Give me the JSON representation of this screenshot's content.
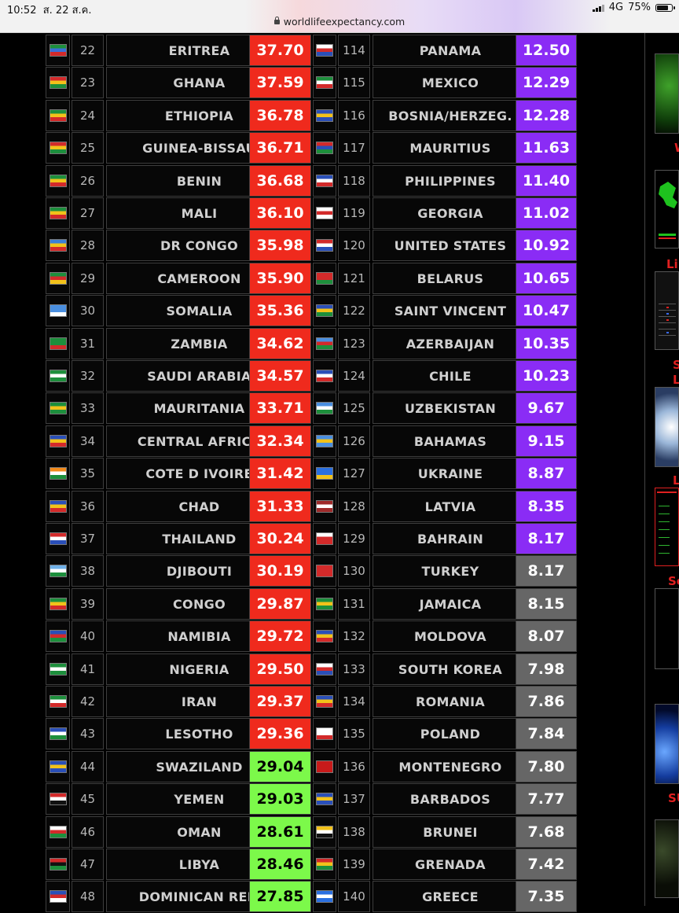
{
  "status_bar": {
    "time": "10:52",
    "date": "ส. 22 ส.ค.",
    "network": "4G",
    "battery": "75%",
    "url": "worldlifeexpectancy.com"
  },
  "colors": {
    "red": "#ef2a1d",
    "purple": "#8a2cf5",
    "gray": "#666666",
    "green": "#7cf94a"
  },
  "rows": [
    {
      "l": {
        "rank": "22",
        "name": "ERITREA",
        "value": "37.70",
        "color": "red"
      },
      "r": {
        "rank": "114",
        "name": "PANAMA",
        "value": "12.50",
        "color": "purple"
      }
    },
    {
      "l": {
        "rank": "23",
        "name": "GHANA",
        "value": "37.59",
        "color": "red"
      },
      "r": {
        "rank": "115",
        "name": "MEXICO",
        "value": "12.29",
        "color": "purple"
      }
    },
    {
      "l": {
        "rank": "24",
        "name": "ETHIOPIA",
        "value": "36.78",
        "color": "red"
      },
      "r": {
        "rank": "116",
        "name": "BOSNIA/HERZEG.",
        "value": "12.28",
        "color": "purple"
      }
    },
    {
      "l": {
        "rank": "25",
        "name": "GUINEA-BISSAU",
        "value": "36.71",
        "color": "red"
      },
      "r": {
        "rank": "117",
        "name": "MAURITIUS",
        "value": "11.63",
        "color": "purple"
      }
    },
    {
      "l": {
        "rank": "26",
        "name": "BENIN",
        "value": "36.68",
        "color": "red"
      },
      "r": {
        "rank": "118",
        "name": "PHILIPPINES",
        "value": "11.40",
        "color": "purple"
      }
    },
    {
      "l": {
        "rank": "27",
        "name": "MALI",
        "value": "36.10",
        "color": "red"
      },
      "r": {
        "rank": "119",
        "name": "GEORGIA",
        "value": "11.02",
        "color": "purple"
      }
    },
    {
      "l": {
        "rank": "28",
        "name": "DR CONGO",
        "value": "35.98",
        "color": "red"
      },
      "r": {
        "rank": "120",
        "name": "UNITED STATES",
        "value": "10.92",
        "color": "purple"
      }
    },
    {
      "l": {
        "rank": "29",
        "name": "CAMEROON",
        "value": "35.90",
        "color": "red"
      },
      "r": {
        "rank": "121",
        "name": "BELARUS",
        "value": "10.65",
        "color": "purple"
      }
    },
    {
      "l": {
        "rank": "30",
        "name": "SOMALIA",
        "value": "35.36",
        "color": "red"
      },
      "r": {
        "rank": "122",
        "name": "SAINT VINCENT",
        "value": "10.47",
        "color": "purple"
      }
    },
    {
      "l": {
        "rank": "31",
        "name": "ZAMBIA",
        "value": "34.62",
        "color": "red"
      },
      "r": {
        "rank": "123",
        "name": "AZERBAIJAN",
        "value": "10.35",
        "color": "purple"
      }
    },
    {
      "l": {
        "rank": "32",
        "name": "SAUDI ARABIA",
        "value": "34.57",
        "color": "red"
      },
      "r": {
        "rank": "124",
        "name": "CHILE",
        "value": "10.23",
        "color": "purple"
      }
    },
    {
      "l": {
        "rank": "33",
        "name": "MAURITANIA",
        "value": "33.71",
        "color": "red"
      },
      "r": {
        "rank": "125",
        "name": "UZBEKISTAN",
        "value": "9.67",
        "color": "purple"
      }
    },
    {
      "l": {
        "rank": "34",
        "name": "CENTRAL AFRICA",
        "value": "32.34",
        "color": "red"
      },
      "r": {
        "rank": "126",
        "name": "BAHAMAS",
        "value": "9.15",
        "color": "purple"
      }
    },
    {
      "l": {
        "rank": "35",
        "name": "COTE D IVOIRE",
        "value": "31.42",
        "color": "red"
      },
      "r": {
        "rank": "127",
        "name": "UKRAINE",
        "value": "8.87",
        "color": "purple"
      }
    },
    {
      "l": {
        "rank": "36",
        "name": "CHAD",
        "value": "31.33",
        "color": "red"
      },
      "r": {
        "rank": "128",
        "name": "LATVIA",
        "value": "8.35",
        "color": "purple"
      }
    },
    {
      "l": {
        "rank": "37",
        "name": "THAILAND",
        "value": "30.24",
        "color": "red"
      },
      "r": {
        "rank": "129",
        "name": "BAHRAIN",
        "value": "8.17",
        "color": "purple"
      }
    },
    {
      "l": {
        "rank": "38",
        "name": "DJIBOUTI",
        "value": "30.19",
        "color": "red"
      },
      "r": {
        "rank": "130",
        "name": "TURKEY",
        "value": "8.17",
        "color": "gray"
      }
    },
    {
      "l": {
        "rank": "39",
        "name": "CONGO",
        "value": "29.87",
        "color": "red"
      },
      "r": {
        "rank": "131",
        "name": "JAMAICA",
        "value": "8.15",
        "color": "gray"
      }
    },
    {
      "l": {
        "rank": "40",
        "name": "NAMIBIA",
        "value": "29.72",
        "color": "red"
      },
      "r": {
        "rank": "132",
        "name": "MOLDOVA",
        "value": "8.07",
        "color": "gray"
      }
    },
    {
      "l": {
        "rank": "41",
        "name": "NIGERIA",
        "value": "29.50",
        "color": "red"
      },
      "r": {
        "rank": "133",
        "name": "SOUTH KOREA",
        "value": "7.98",
        "color": "gray"
      }
    },
    {
      "l": {
        "rank": "42",
        "name": "IRAN",
        "value": "29.37",
        "color": "red"
      },
      "r": {
        "rank": "134",
        "name": "ROMANIA",
        "value": "7.86",
        "color": "gray"
      }
    },
    {
      "l": {
        "rank": "43",
        "name": "LESOTHO",
        "value": "29.36",
        "color": "red"
      },
      "r": {
        "rank": "135",
        "name": "POLAND",
        "value": "7.84",
        "color": "gray"
      }
    },
    {
      "l": {
        "rank": "44",
        "name": "SWAZILAND",
        "value": "29.04",
        "color": "green"
      },
      "r": {
        "rank": "136",
        "name": "MONTENEGRO",
        "value": "7.80",
        "color": "gray"
      }
    },
    {
      "l": {
        "rank": "45",
        "name": "YEMEN",
        "value": "29.03",
        "color": "green"
      },
      "r": {
        "rank": "137",
        "name": "BARBADOS",
        "value": "7.77",
        "color": "gray"
      }
    },
    {
      "l": {
        "rank": "46",
        "name": "OMAN",
        "value": "28.61",
        "color": "green"
      },
      "r": {
        "rank": "138",
        "name": "BRUNEI",
        "value": "7.68",
        "color": "gray"
      }
    },
    {
      "l": {
        "rank": "47",
        "name": "LIBYA",
        "value": "28.46",
        "color": "green"
      },
      "r": {
        "rank": "139",
        "name": "GRENADA",
        "value": "7.42",
        "color": "gray"
      }
    },
    {
      "l": {
        "rank": "48",
        "name": "DOMINICAN REP.",
        "value": "27.85",
        "color": "green"
      },
      "r": {
        "rank": "140",
        "name": "GREECE",
        "value": "7.35",
        "color": "gray"
      }
    }
  ],
  "sidebar": {
    "labels": [
      "W",
      "Li",
      "S",
      "L",
      "L",
      "Sc",
      "SU"
    ]
  }
}
